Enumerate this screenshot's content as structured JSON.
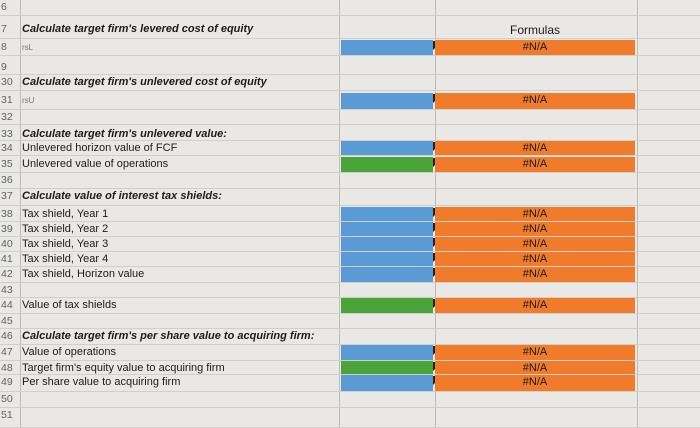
{
  "header": {
    "formulas": "Formulas"
  },
  "colors": {
    "blue": "#5b9bd5",
    "green": "#4aa43a",
    "orange": "#f07b2a"
  },
  "rows": [
    {
      "num": "6",
      "label": "",
      "style": ""
    },
    {
      "num": "7",
      "label": "Calculate target firm's levered cost of equity",
      "style": "head"
    },
    {
      "num": "8",
      "label": "rsL",
      "style": "sym"
    },
    {
      "num": "9",
      "label": "",
      "style": ""
    },
    {
      "num": "30",
      "label": "Calculate target firm's unlevered cost of equity",
      "style": "head"
    },
    {
      "num": "31",
      "label": "rsU",
      "style": "sym"
    },
    {
      "num": "32",
      "label": "",
      "style": ""
    },
    {
      "num": "33",
      "label": "Calculate target firm's unlevered value:",
      "style": "head"
    },
    {
      "num": "34",
      "label": "Unlevered horizon value of FCF",
      "style": ""
    },
    {
      "num": "35",
      "label": "Unlevered value of operations",
      "style": ""
    },
    {
      "num": "36",
      "label": "",
      "style": ""
    },
    {
      "num": "37",
      "label": "Calculate value of interest tax shields:",
      "style": "head"
    },
    {
      "num": "38",
      "label": "Tax shield, Year 1",
      "style": ""
    },
    {
      "num": "39",
      "label": "Tax shield, Year 2",
      "style": ""
    },
    {
      "num": "40",
      "label": "Tax shield, Year 3",
      "style": ""
    },
    {
      "num": "41",
      "label": "Tax shield, Year 4",
      "style": ""
    },
    {
      "num": "42",
      "label": "Tax shield, Horizon value",
      "style": ""
    },
    {
      "num": "43",
      "label": "",
      "style": ""
    },
    {
      "num": "44",
      "label": "Value of tax shields",
      "style": ""
    },
    {
      "num": "45",
      "label": "",
      "style": ""
    },
    {
      "num": "46",
      "label": "Calculate target firm's per share value to acquiring firm:",
      "style": "head"
    },
    {
      "num": "47",
      "label": "Value of operations",
      "style": ""
    },
    {
      "num": "48",
      "label": "Target firm's equity value to acquiring firm",
      "style": ""
    },
    {
      "num": "49",
      "label": "Per share value to acquiring firm",
      "style": ""
    },
    {
      "num": "50",
      "label": "",
      "style": ""
    },
    {
      "num": "51",
      "label": "",
      "style": ""
    }
  ],
  "error_value": "#N/A",
  "formula_rows": [
    {
      "row": 2,
      "input": "blue",
      "result": "#N/A"
    },
    {
      "row": 5,
      "input": "blue",
      "result": "#N/A"
    },
    {
      "row": 8,
      "input": "blue",
      "result": "#N/A"
    },
    {
      "row": 9,
      "input": "green",
      "result": "#N/A"
    },
    {
      "row": 12,
      "input": "blue",
      "result": "#N/A"
    },
    {
      "row": 13,
      "input": "blue",
      "result": "#N/A"
    },
    {
      "row": 14,
      "input": "blue",
      "result": "#N/A"
    },
    {
      "row": 15,
      "input": "blue",
      "result": "#N/A"
    },
    {
      "row": 16,
      "input": "blue",
      "result": "#N/A"
    },
    {
      "row": 18,
      "input": "green",
      "result": "#N/A"
    },
    {
      "row": 21,
      "input": "blue",
      "result": "#N/A"
    },
    {
      "row": 22,
      "input": "green",
      "result": "#N/A"
    },
    {
      "row": 23,
      "input": "blue",
      "result": "#N/A"
    }
  ]
}
